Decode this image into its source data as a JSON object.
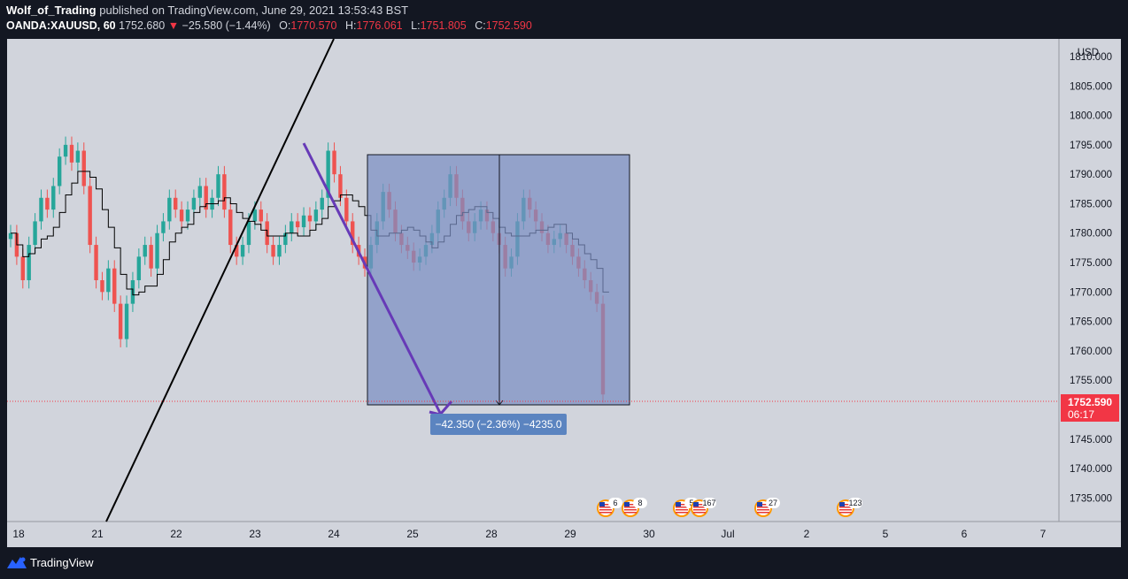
{
  "header": {
    "author": "Wolf_of_Trading",
    "published_text": "published on TradingView.com, June 29, 2021 13:53:43 BST",
    "symbol": "OANDA:XAUUSD, 60",
    "last_price": "1752.680",
    "change": "−25.580 (−1.44%)",
    "open_label": "O:",
    "open": "1770.570",
    "high_label": "H:",
    "high": "1776.061",
    "low_label": "L:",
    "low": "1751.805",
    "close_label": "C:",
    "close": "1752.590"
  },
  "price_axis": {
    "currency": "USD",
    "current_price": "1752.590",
    "countdown": "06:17"
  },
  "measure_tool": {
    "label": "−42.350 (−2.36%) −4235.0"
  },
  "events": [
    {
      "flag": "us-flag-icon",
      "count": "6"
    },
    {
      "flag": "us-flag-icon",
      "count": "8"
    },
    {
      "flag": "us-flag-icon",
      "count": "5"
    },
    {
      "flag": "us-flag-icon",
      "count": "167"
    },
    {
      "flag": "us-flag-icon",
      "count": "27"
    },
    {
      "flag": "us-flag-icon",
      "count": "123"
    }
  ],
  "footer": {
    "brand": "TradingView"
  },
  "colors": {
    "background": "#131722",
    "chart_bg": "#d1d4dc",
    "up": "#26a69a",
    "down": "#ef5350",
    "measure_box": "#7b8fc4",
    "trend_purple": "#673ab7",
    "price_tag": "#f23645"
  },
  "chart_data": {
    "type": "candlestick",
    "symbol": "OANDA:XAUUSD",
    "ylabel": "USD",
    "ylim": [
      1731,
      1813
    ],
    "yticks": [
      1810,
      1805,
      1800,
      1795,
      1790,
      1785,
      1780,
      1775,
      1770,
      1765,
      1760,
      1755,
      1745,
      1740,
      1735
    ],
    "ytick_labels": [
      "1810.000",
      "1805.000",
      "1800.000",
      "1795.000",
      "1790.000",
      "1785.000",
      "1780.000",
      "1775.000",
      "1770.000",
      "1765.000",
      "1760.000",
      "1755.000",
      "1745.000",
      "1740.000",
      "1735.000"
    ],
    "xticks": [
      "18",
      "21",
      "22",
      "23",
      "24",
      "25",
      "28",
      "29",
      "30",
      "Jul",
      "2",
      "5",
      "6",
      "7"
    ],
    "close_series": [
      1780,
      1776,
      1772,
      1778,
      1782,
      1786,
      1784,
      1788,
      1793,
      1795,
      1792,
      1794,
      1788,
      1778,
      1772,
      1770,
      1774,
      1768,
      1762,
      1768,
      1772,
      1776,
      1778,
      1774,
      1780,
      1782,
      1786,
      1784,
      1782,
      1784,
      1786,
      1788,
      1784,
      1786,
      1790,
      1784,
      1778,
      1776,
      1778,
      1782,
      1784,
      1782,
      1778,
      1776,
      1778,
      1780,
      1782,
      1781,
      1783,
      1782,
      1784,
      1786,
      1794,
      1790,
      1786,
      1782,
      1778,
      1776,
      1774,
      1778,
      1782,
      1787,
      1784,
      1780,
      1778,
      1777,
      1775,
      1776,
      1778,
      1780,
      1784,
      1786,
      1790,
      1786,
      1782,
      1780,
      1782,
      1784,
      1782,
      1780,
      1778,
      1774,
      1776,
      1782,
      1786,
      1784,
      1782,
      1780,
      1778,
      1779,
      1780,
      1778,
      1776,
      1774,
      1772,
      1770,
      1768,
      1752.59
    ],
    "annotations": [
      {
        "type": "price_range",
        "from": 1794.94,
        "to": 1752.59,
        "label": "−42.350 (−2.36%) −4235.0"
      }
    ]
  }
}
